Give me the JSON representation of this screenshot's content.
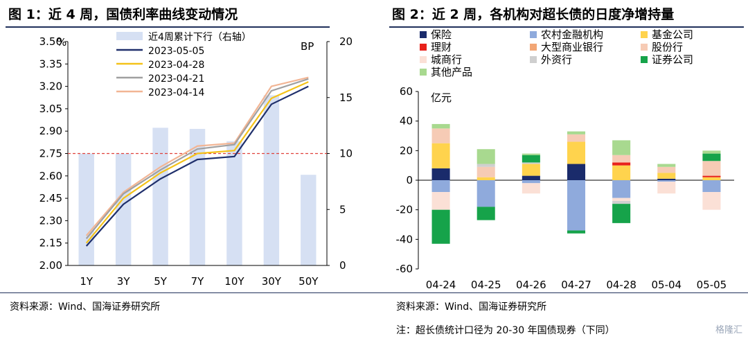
{
  "left": {
    "title": "图 1：近 4 周，国债利率曲线变动情况",
    "source": "资料来源：Wind、国海证券研究所"
  },
  "right": {
    "title": "图 2：近 2 周，各机构对超长债的日度净增持量",
    "source": "资料来源：Wind、国海证券研究所",
    "note": "注：超长债统计口径为 20-30 年国债现券（下同）"
  },
  "watermark": "格隆汇",
  "colors": {
    "bar_left": "#d6e0f3",
    "line_0505": "#1f2f6b",
    "line_0428": "#f4c219",
    "line_0421": "#a0a0a0",
    "line_0414": "#f2b594",
    "ref_line": "#e0403a"
  },
  "chart_data": [
    {
      "type": "line",
      "title": "",
      "categories": [
        "1Y",
        "3Y",
        "5Y",
        "7Y",
        "10Y",
        "30Y",
        "50Y"
      ],
      "ylabel_left": "%",
      "ylabel_right": "BP",
      "ylim_left": [
        2.0,
        3.5
      ],
      "ylim_right": [
        0,
        20
      ],
      "yticks_left": [
        "3.50",
        "3.35",
        "3.20",
        "3.05",
        "2.90",
        "2.75",
        "2.60",
        "2.45",
        "2.30",
        "2.15",
        "2.00"
      ],
      "yticks_right": [
        "20",
        "15",
        "10",
        "5",
        "0"
      ],
      "reference_line": {
        "axis": "left",
        "value": 2.75
      },
      "bar_series": {
        "name": "近4周累计下行（右轴）",
        "values": [
          10,
          10,
          12.3,
          12.2,
          11.1,
          15.2,
          8.1
        ]
      },
      "series": [
        {
          "name": "2023-05-05",
          "values": [
            2.13,
            2.41,
            2.58,
            2.71,
            2.73,
            3.08,
            3.2
          ]
        },
        {
          "name": "2023-04-28",
          "values": [
            2.15,
            2.45,
            2.62,
            2.75,
            2.77,
            3.12,
            3.23
          ]
        },
        {
          "name": "2023-04-21",
          "values": [
            2.18,
            2.48,
            2.64,
            2.78,
            2.81,
            3.17,
            3.25
          ]
        },
        {
          "name": "2023-04-14",
          "values": [
            2.2,
            2.49,
            2.66,
            2.8,
            2.82,
            3.2,
            3.26
          ]
        }
      ]
    },
    {
      "type": "bar",
      "stacked": true,
      "title": "",
      "categories": [
        "04-24",
        "04-25",
        "04-26",
        "04-27",
        "04-28",
        "05-04",
        "05-05"
      ],
      "ylabel": "亿元",
      "ylim": [
        -60,
        60
      ],
      "yticks": [
        "60",
        "40",
        "20",
        "0",
        "-20",
        "-40",
        "-60"
      ],
      "series": [
        {
          "name": "保险",
          "color": "#1a2b6b",
          "values": [
            8,
            0,
            3,
            11,
            0,
            1,
            0
          ]
        },
        {
          "name": "农村金融机构",
          "color": "#8faadc",
          "values": [
            -8,
            -18,
            -2,
            -34,
            -12,
            -1,
            -8
          ]
        },
        {
          "name": "基金公司",
          "color": "#ffd34d",
          "values": [
            17,
            2,
            8,
            15,
            10,
            4,
            2
          ]
        },
        {
          "name": "理财",
          "color": "#e8211b",
          "values": [
            0,
            0,
            0,
            0,
            2,
            0,
            1
          ]
        },
        {
          "name": "大型商业银行",
          "color": "#f2a675",
          "values": [
            0,
            0,
            0,
            0,
            0,
            0,
            0
          ]
        },
        {
          "name": "股份行",
          "color": "#f6cbb5",
          "values": [
            10,
            7,
            0,
            5,
            5,
            4,
            10
          ]
        },
        {
          "name": "城商行",
          "color": "#fbe0d6",
          "values": [
            -12,
            0,
            -7,
            0,
            -2,
            -8,
            -12
          ]
        },
        {
          "name": "外资行",
          "color": "#cfcfcf",
          "values": [
            0,
            2,
            1,
            0,
            -2,
            0,
            0
          ]
        },
        {
          "name": "证券公司",
          "color": "#16a34a",
          "values": [
            -23,
            -9,
            5,
            -2,
            -13,
            0,
            5
          ]
        },
        {
          "name": "其他产品",
          "color": "#a8d98f",
          "values": [
            3,
            10,
            1,
            2,
            10,
            2,
            2
          ]
        }
      ]
    }
  ]
}
